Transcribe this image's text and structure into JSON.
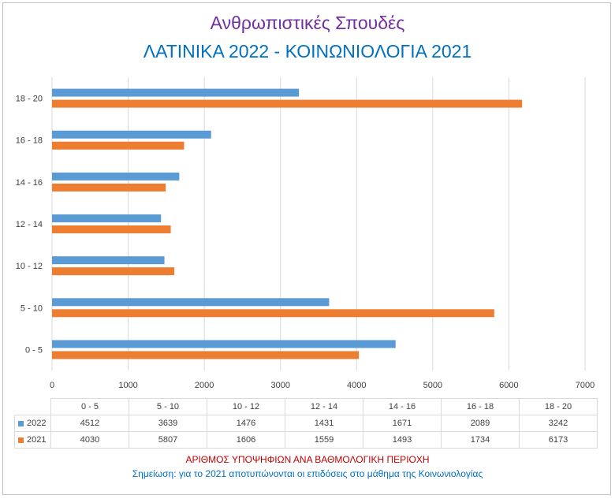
{
  "title_line1": "Ανθρωπιστικές Σπουδές",
  "title_line2": "ΛΑΤΙΝΙΚΑ 2022 - ΚΟΙΝΩΝΙΟΛΟΓΙΑ 2021",
  "note_line1": "ΑΡΙΘΜΟΣ ΥΠΟΨΗΦΙΩΝ ΑΝΑ ΒΑΘΜΟΛΟΓΙΚΗ ΠΕΡΙΟΧΗ",
  "note_line2": "Σημείωση: για το 2021 αποτυπώνονται οι επιδόσεις στο μάθημα της Κοινωνιολογίας",
  "chart_data": {
    "type": "bar",
    "orientation": "horizontal",
    "title": "Ανθρωπιστικές Σπουδές",
    "subtitle": "ΛΑΤΙΝΙΚΑ 2022 - ΚΟΙΝΩΝΙΟΛΟΓΙΑ 2021",
    "categories": [
      "0 - 5",
      "5 - 10",
      "10 - 12",
      "12 - 14",
      "14 - 16",
      "16 - 18",
      "18 - 20"
    ],
    "series": [
      {
        "name": "2022",
        "color": "#5b9bd5",
        "values": [
          4512,
          3639,
          1476,
          1431,
          1671,
          2089,
          3242
        ]
      },
      {
        "name": "2021",
        "color": "#ed7d31",
        "values": [
          4030,
          5807,
          1606,
          1559,
          1493,
          1734,
          6173
        ]
      }
    ],
    "xlim": [
      0,
      7000
    ],
    "x_ticks": [
      "0",
      "1000",
      "2000",
      "3000",
      "4000",
      "5000",
      "6000",
      "7000"
    ],
    "grid": true,
    "legend": "data-table",
    "xlabel": "",
    "ylabel": ""
  }
}
